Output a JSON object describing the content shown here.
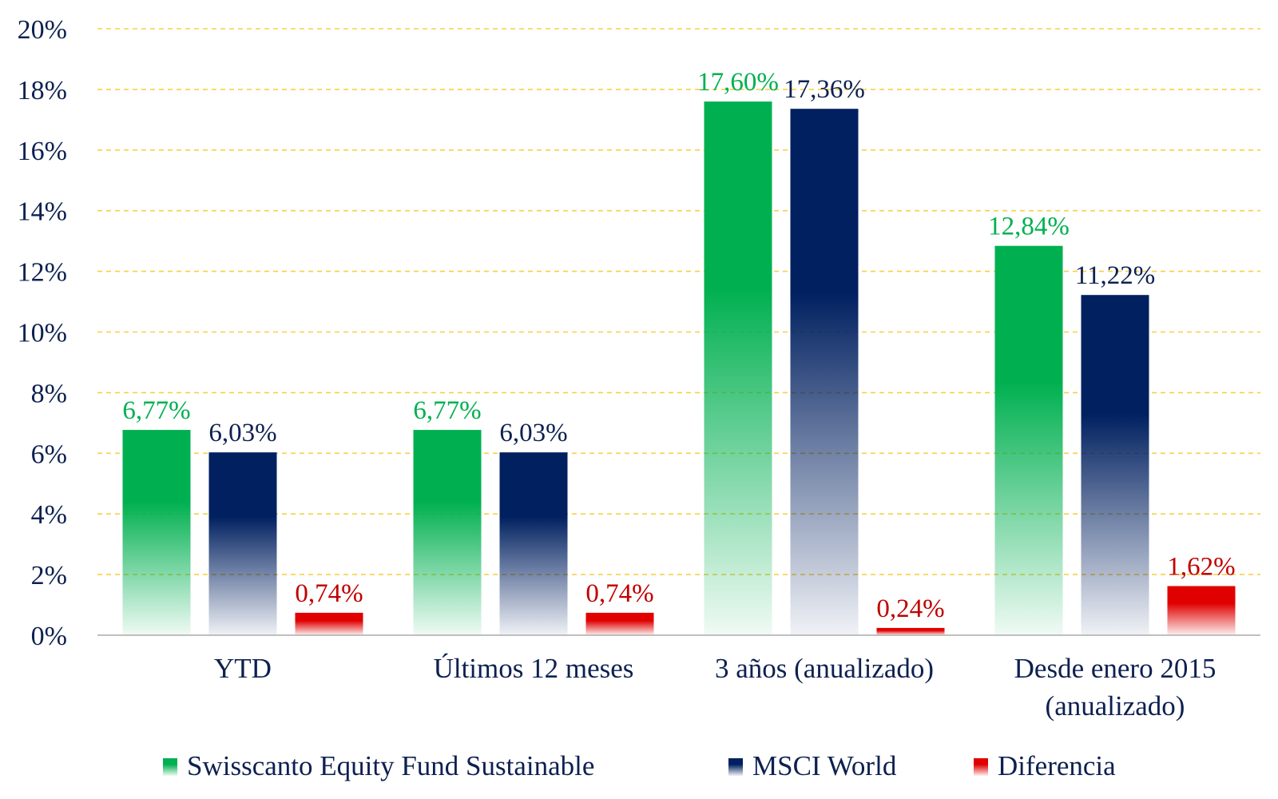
{
  "chart_data": {
    "type": "bar",
    "title": "",
    "xlabel": "",
    "ylabel": "",
    "ylim": [
      0,
      20
    ],
    "yticks": [
      0,
      2,
      4,
      6,
      8,
      10,
      12,
      14,
      16,
      18,
      20
    ],
    "ytick_suffix": "%",
    "grid": true,
    "legend_position": "bottom",
    "categories": [
      [
        "YTD"
      ],
      [
        "Últimos 12 meses"
      ],
      [
        "3 años (anualizado)"
      ],
      [
        "Desde enero 2015",
        "(anualizado)"
      ]
    ],
    "series": [
      {
        "name": "Swisscanto Equity Fund Sustainable",
        "values": [
          6.77,
          6.77,
          17.6,
          12.84
        ],
        "labels": [
          "6,77%",
          "6,77%",
          "17,60%",
          "12,84%"
        ],
        "color": "#00b050",
        "label_color": "#00b050"
      },
      {
        "name": "MSCI World",
        "values": [
          6.03,
          6.03,
          17.36,
          11.22
        ],
        "labels": [
          "6,03%",
          "6,03%",
          "17,36%",
          "11,22%"
        ],
        "color": "#002060",
        "label_color": "#0d2050"
      },
      {
        "name": "Diferencia",
        "values": [
          0.74,
          0.74,
          0.24,
          1.62
        ],
        "labels": [
          "0,74%",
          "0,74%",
          "0,24%",
          "1,62%"
        ],
        "color": "#e00000",
        "label_color": "#c00000"
      }
    ]
  }
}
